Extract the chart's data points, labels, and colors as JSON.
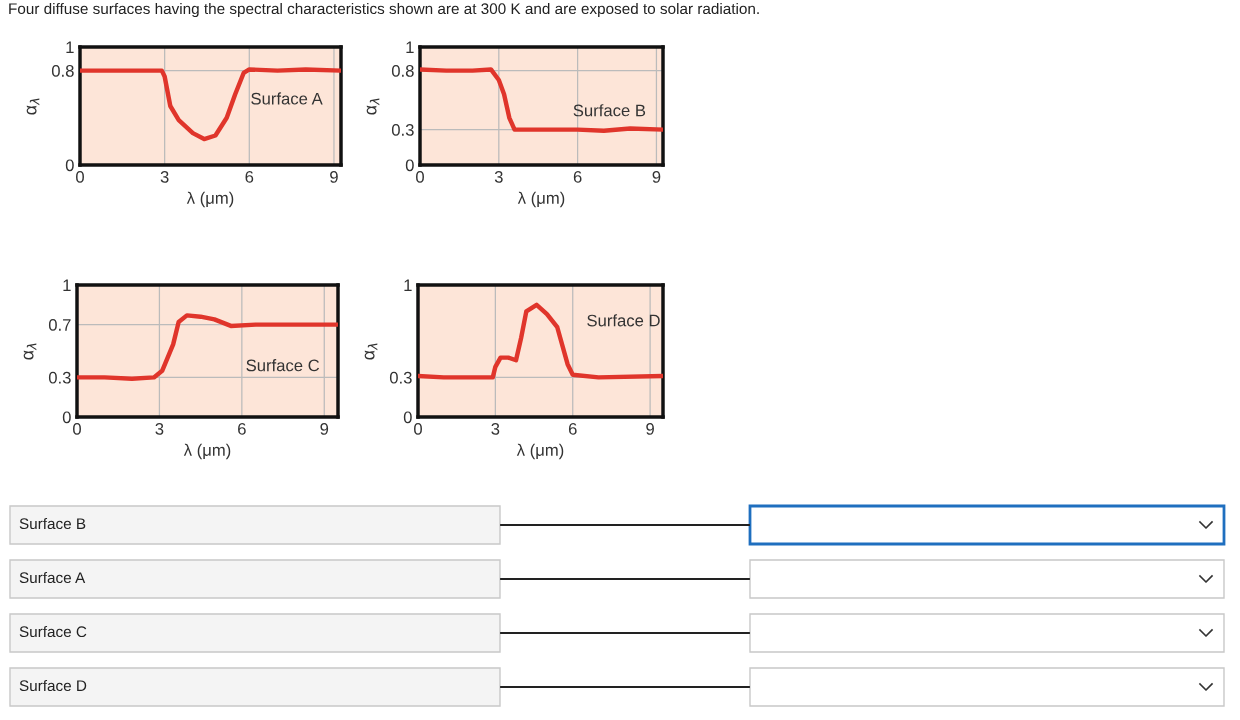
{
  "chart_data": [
    {
      "type": "line",
      "title": "Four diffuse surfaces having the spectral characteristics shown are at 300 K and are exposed to solar radiation.",
      "xlabel": "λ (μm)",
      "ylabel": "α$_{λ}$",
      "annotations": [
        "Surface A"
      ],
      "xlim": [
        0,
        9.25
      ],
      "xticks": [
        0,
        3,
        6,
        9
      ],
      "ylim": [
        0,
        1
      ],
      "yticks": [
        0,
        0.8,
        1
      ],
      "grid": true,
      "legend": false,
      "series": [
        {
          "color": "#e0352b",
          "x": [
            0,
            0.5,
            1,
            1.5,
            2,
            2.5,
            2.9,
            3.0,
            3.2,
            3.5,
            4.0,
            4.4,
            4.8,
            5.2,
            5.5,
            5.8,
            6.0,
            7,
            8,
            9.25
          ],
          "values": [
            0.8,
            0.8,
            0.8,
            0.8,
            0.8,
            0.8,
            0.8,
            0.75,
            0.5,
            0.38,
            0.27,
            0.22,
            0.25,
            0.4,
            0.6,
            0.78,
            0.81,
            0.8,
            0.81,
            0.8
          ]
        }
      ]
    },
    {
      "type": "line",
      "xlabel": "λ (μm)",
      "ylabel": "α$_{λ}$",
      "annotations": [
        "Surface B"
      ],
      "xlim": [
        0,
        9.25
      ],
      "xticks": [
        0,
        3,
        6,
        9
      ],
      "ylim": [
        0,
        1
      ],
      "yticks": [
        0,
        0.3,
        0.8,
        1
      ],
      "grid": true,
      "legend": false,
      "series": [
        {
          "color": "#e0352b",
          "x": [
            0,
            1,
            2,
            2.7,
            3.0,
            3.2,
            3.4,
            3.6,
            4.5,
            6,
            7,
            8,
            9.25
          ],
          "values": [
            0.81,
            0.8,
            0.8,
            0.81,
            0.72,
            0.6,
            0.4,
            0.3,
            0.3,
            0.3,
            0.29,
            0.31,
            0.3
          ]
        }
      ]
    },
    {
      "type": "line",
      "xlabel": "λ (μm)",
      "ylabel": "α$_{λ}$",
      "annotations": [
        "Surface C"
      ],
      "xlim": [
        0,
        9.5
      ],
      "xticks": [
        0,
        3,
        6,
        9
      ],
      "ylim": [
        0,
        1
      ],
      "yticks": [
        0,
        0.3,
        0.7,
        1
      ],
      "grid": true,
      "legend": false,
      "series": [
        {
          "color": "#e0352b",
          "x": [
            0,
            1,
            2,
            2.8,
            3.1,
            3.5,
            3.7,
            4.0,
            4.5,
            5.0,
            5.6,
            6.5,
            7.5,
            9.5
          ],
          "values": [
            0.3,
            0.3,
            0.29,
            0.3,
            0.35,
            0.55,
            0.72,
            0.77,
            0.76,
            0.74,
            0.69,
            0.7,
            0.7,
            0.7
          ]
        }
      ]
    },
    {
      "type": "line",
      "xlabel": "λ (μm)",
      "ylabel": "α$_{λ}$",
      "annotations": [
        "Surface D"
      ],
      "xlim": [
        0,
        9.5
      ],
      "xticks": [
        0,
        3,
        6,
        9
      ],
      "ylim": [
        0,
        1
      ],
      "yticks": [
        0,
        0.3,
        1
      ],
      "grid": true,
      "legend": false,
      "series": [
        {
          "color": "#e0352b",
          "x": [
            0,
            1,
            2,
            2.9,
            3.0,
            3.2,
            3.5,
            3.8,
            4.0,
            4.2,
            4.6,
            5.0,
            5.4,
            5.8,
            6.0,
            7,
            9.5
          ],
          "values": [
            0.31,
            0.3,
            0.3,
            0.3,
            0.38,
            0.45,
            0.45,
            0.43,
            0.6,
            0.8,
            0.85,
            0.78,
            0.68,
            0.4,
            0.32,
            0.3,
            0.31
          ]
        }
      ]
    },
    {
      "type": "other",
      "annotations": [
        "Surface B",
        "Surface A",
        "Surface C",
        "Surface D"
      ]
    }
  ]
}
